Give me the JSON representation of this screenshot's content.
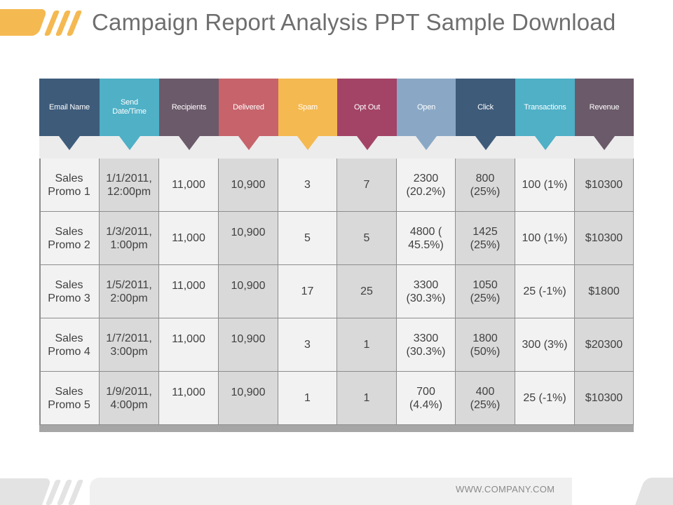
{
  "title": "Campaign Report Analysis PPT Sample Download",
  "footer": {
    "url": "WWW.COMPANY.COM"
  },
  "colors": {
    "accent_yellow": "#f5b951",
    "header_colors": [
      "#3e5b7a",
      "#4fb0c6",
      "#6b5a6a",
      "#c6636b",
      "#f5b951",
      "#a34466",
      "#8aa8c5",
      "#3e5b7a",
      "#4fb0c6",
      "#6b5a6a"
    ]
  },
  "table": {
    "headers": [
      "Email Name",
      "Send Date/Time",
      "Recipients",
      "Delivered",
      "Spam",
      "Opt Out",
      "Open",
      "Click",
      "Transactions",
      "Revenue"
    ],
    "rows": [
      [
        "Sales Promo 1",
        "1/1/2011, 12:00pm",
        "11,000",
        "10,900",
        "3",
        "7",
        "2300 (20.2%)",
        "800 (25%)",
        "100 (1%)",
        "$10300"
      ],
      [
        "Sales Promo 2",
        "1/3/2011, 1:00pm",
        "11,000",
        "10,900",
        "5",
        "5",
        "4800 ( 45.5%)",
        "1425 (25%)",
        "100 (1%)",
        "$10300"
      ],
      [
        "Sales Promo 3",
        "1/5/2011, 2:00pm",
        "11,000",
        "10,900",
        "17",
        "25",
        "3300 (30.3%)",
        "1050 (25%)",
        "25 (-1%)",
        "$1800"
      ],
      [
        "Sales Promo 4",
        "1/7/2011, 3:00pm",
        "11,000",
        "10,900",
        "3",
        "1",
        "3300 (30.3%)",
        "1800 (50%)",
        "300 (3%)",
        "$20300"
      ],
      [
        "Sales Promo 5",
        "1/9/2011, 4:00pm",
        "11,000",
        "10,900",
        "1",
        "1",
        "700 (4.4%)",
        "400 (25%)",
        "25 (-1%)",
        "$10300"
      ]
    ]
  }
}
